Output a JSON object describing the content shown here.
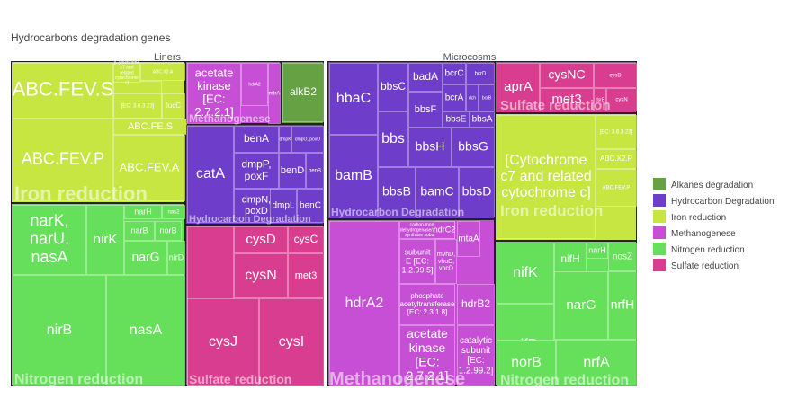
{
  "chart_data": {
    "type": "treemap",
    "title": "Hydrocarbons degradation genes",
    "colors": {
      "Alkanes degradation": "#66a143",
      "Hydrocarbon Degradation": "#6e3dc9",
      "Iron reduction": "#c8e642",
      "Methanogenese": "#c74fd6",
      "Nitrogen reduction": "#66e05a",
      "Sulfate reduction": "#d93d8f"
    },
    "legend": {
      "position": "right",
      "items": [
        "Alkanes degradation",
        "Hydrocarbon Degradation",
        "Iron reduction",
        "Methanogenese",
        "Nitrogen reduction",
        "Sulfate reduction"
      ]
    },
    "panels": [
      {
        "name": "Liners",
        "groups": [
          {
            "name": "Iron reduction",
            "label": "Iron reduction",
            "tiles": [
              "ABC.FEV.S",
              "ABC.FEV.P",
              "ABC.FE.S",
              "ABC.FEV.A",
              "lucC",
              "ABC.X2.P",
              "[EC: 3.6.3.23]",
              "[Cytochrome c7 and related cytochrome c]",
              "ABC.X2.A"
            ]
          },
          {
            "name": "Nitrogen reduction",
            "label": "Nitrogen reduction",
            "tiles": [
              "narK, narU, nasA",
              "nirK",
              "narH",
              "nas2",
              "narB",
              "norB",
              "narG",
              "nirD",
              "nirB",
              "nasA"
            ]
          },
          {
            "name": "Methanogenese",
            "label": "Methanogenese",
            "tiles": [
              "acetate kinase [EC: 2.7.2.1]",
              "hdrA2",
              "mtrA"
            ]
          },
          {
            "name": "Alkanes degradation",
            "label": "",
            "tiles": [
              "alkB2"
            ]
          },
          {
            "name": "Hydrocarbon Degradation",
            "label": "Hydrocarbon Degradation",
            "tiles": [
              "catA",
              "benA",
              "dmpK",
              "dmpO, poxO",
              "dmpP, poxF",
              "benD",
              "benB",
              "dmpN, poxD",
              "dmpL",
              "benC"
            ]
          },
          {
            "name": "Sulfate reduction",
            "label": "Sulfate reduction",
            "tiles": [
              "sir",
              "cysD",
              "cysC",
              "cysN",
              "met3",
              "cysJ",
              "cysI"
            ]
          }
        ]
      },
      {
        "name": "Microcosms",
        "groups": [
          {
            "name": "Hydrocarbon Degradation",
            "label": "Hydrocarbon Degradation",
            "tiles": [
              "hbaC",
              "bamB",
              "bbsC",
              "badA",
              "bcrC",
              "bcrD",
              "bcrA",
              "dch",
              "bcrB",
              "bbsF",
              "bbsE",
              "bbsA",
              "bbs",
              "bbsH",
              "bbsG",
              "bbsB",
              "bamC",
              "bbsD"
            ]
          },
          {
            "name": "Methanogenese",
            "label": "Methanogenese",
            "tiles": [
              "hdrA2",
              "carbon-monoxide dehydrogenase/acetyl-CoA synthase subunit delta",
              "hdrC2",
              "subunit E [EC: 1.2.99.5]",
              "mtaA",
              "mvhD, vhuD, vhcD",
              "phosphate acetyltransferase [EC: 2.3.1.8]",
              "hdrB2",
              "acetate kinase [EC: 2.7.2.1]",
              "catalytic subunit [EC: 1.2.99.2]"
            ]
          },
          {
            "name": "Sulfate reduction",
            "label": "Sulfate reduction",
            "tiles": [
              "aprA",
              "cysNC",
              "cysD",
              "met3",
              "dsrB",
              "cysN",
              "aprB"
            ]
          },
          {
            "name": "Iron reduction",
            "label": "Iron reduction",
            "tiles": [
              "[Cytochrome c7 and related cytochrome c]",
              "[EC: 3.6.3.23]",
              "ABC.X2.P",
              "ABC.FEV.P"
            ]
          },
          {
            "name": "Nitrogen reduction",
            "label": "Nitrogen reduction",
            "tiles": [
              "nifK",
              "nifH",
              "narH",
              "nosZ",
              "nifD",
              "narG",
              "nrfH",
              "norB",
              "nrfA"
            ]
          }
        ]
      }
    ]
  }
}
